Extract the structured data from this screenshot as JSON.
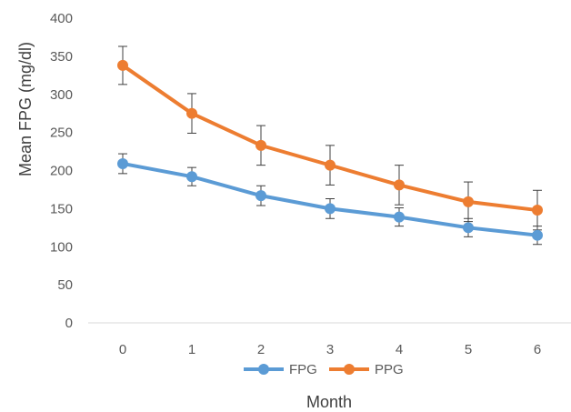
{
  "chart_data": {
    "type": "line",
    "title": "",
    "xlabel": "Month",
    "ylabel": "Mean FPG (mg/dl)",
    "x": [
      0,
      1,
      2,
      3,
      4,
      5,
      6
    ],
    "ylim": [
      0,
      400
    ],
    "yticks": [
      0,
      50,
      100,
      150,
      200,
      250,
      300,
      350,
      400
    ],
    "grid": false,
    "legend_position": "bottom",
    "series": [
      {
        "name": "FPG",
        "color": "#5B9BD5",
        "values": [
          209,
          192,
          167,
          150,
          139,
          125,
          115
        ],
        "error": [
          13,
          12,
          13,
          13,
          12,
          12,
          12
        ]
      },
      {
        "name": "PPG",
        "color": "#ED7D31",
        "values": [
          338,
          275,
          233,
          207,
          181,
          159,
          148
        ],
        "error": [
          25,
          26,
          26,
          26,
          26,
          26,
          26
        ]
      }
    ]
  }
}
